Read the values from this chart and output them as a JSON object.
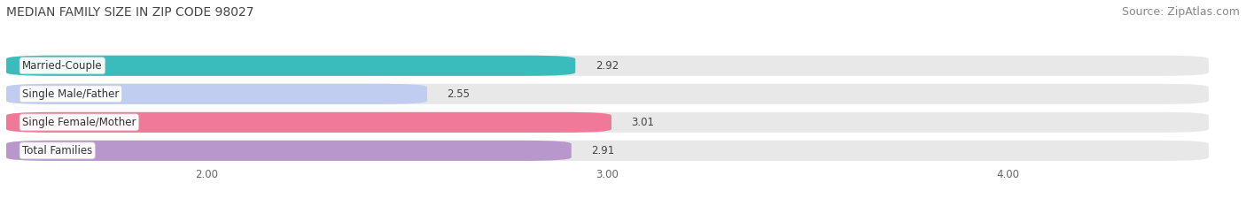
{
  "title": "MEDIAN FAMILY SIZE IN ZIP CODE 98027",
  "source": "Source: ZipAtlas.com",
  "categories": [
    "Married-Couple",
    "Single Male/Father",
    "Single Female/Mother",
    "Total Families"
  ],
  "values": [
    2.92,
    2.55,
    3.01,
    2.91
  ],
  "bar_colors": [
    "#3bbcbc",
    "#c0ccf0",
    "#f07898",
    "#b898cc"
  ],
  "xlim_left": 1.5,
  "xlim_right": 4.5,
  "xticks": [
    2.0,
    3.0,
    4.0
  ],
  "xtick_labels": [
    "2.00",
    "3.00",
    "4.00"
  ],
  "background_color": "#ffffff",
  "bar_bg_color": "#e8e8e8",
  "title_fontsize": 10,
  "source_fontsize": 9,
  "label_fontsize": 8.5,
  "value_fontsize": 8.5,
  "tick_fontsize": 8.5,
  "bar_height": 0.72,
  "bar_gap": 0.28
}
